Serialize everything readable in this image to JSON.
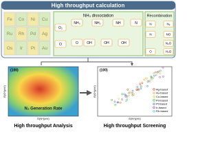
{
  "top": {
    "title": "High throughput calculation",
    "elements": [
      [
        "Fe",
        "Co",
        "Ni",
        "Cu"
      ],
      [
        "Ru",
        "Rh",
        "Pd",
        "Ag"
      ],
      [
        "Os",
        "Ir",
        "Pt",
        "Au"
      ]
    ],
    "dissociation": {
      "title": "NH₃ dissociation",
      "nodes": [
        "O₂",
        "O",
        "NH₃",
        "NH₂",
        "NH",
        "N",
        "O",
        "OH",
        "OH",
        "OH"
      ]
    },
    "recombination": {
      "title": "Recombination",
      "nodes": [
        "N",
        "N₂",
        "N",
        "NO",
        "N₂O",
        "O",
        "H₂O"
      ]
    }
  },
  "analysis": {
    "facet": "(100)",
    "label": "N₂ Generation Rate",
    "xlabel": "E(N*)(eV)",
    "ylabel": "E(O*)(eV)",
    "caption": "High throughput Analysis"
  },
  "screening": {
    "facet": "(100)",
    "xlabel": "E(N*)(eV)",
    "ylabel": "E(O*)(eV)",
    "legend": [
      "Ag-based",
      "Au-based",
      "Cu-based",
      "Pd-based",
      "Pt-based",
      "Ir-based",
      "Rh-based"
    ],
    "caption": "High throughput Screening"
  }
}
